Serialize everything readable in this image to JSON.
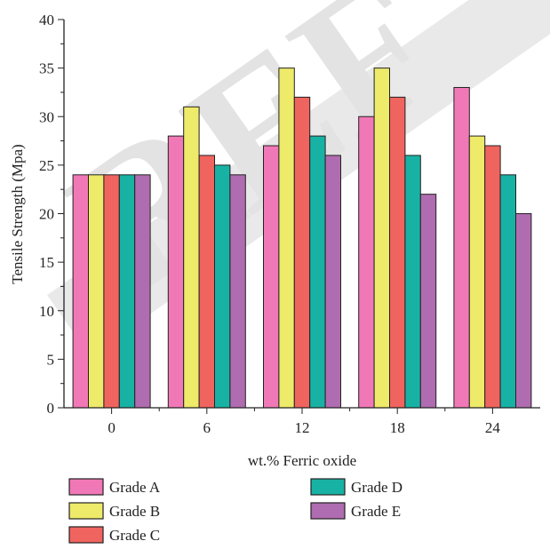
{
  "chart_data": {
    "type": "bar",
    "title": "",
    "xlabel": "wt.% Ferric oxide",
    "ylabel": "Tensile Strength (Mpa)",
    "ylim": [
      0,
      40
    ],
    "yticks": [
      0,
      5,
      10,
      15,
      20,
      25,
      30,
      35,
      40
    ],
    "grid": false,
    "legend_position": "bottom",
    "categories": [
      "0",
      "6",
      "12",
      "18",
      "24"
    ],
    "series": [
      {
        "name": "Grade A",
        "color": "#f178b6",
        "values": [
          24,
          28,
          27,
          30,
          33
        ]
      },
      {
        "name": "Grade B",
        "color": "#eeea6a",
        "values": [
          24,
          31,
          35,
          35,
          28
        ]
      },
      {
        "name": "Grade C",
        "color": "#f0645f",
        "values": [
          24,
          26,
          32,
          32,
          27
        ]
      },
      {
        "name": "Grade D",
        "color": "#18b2a5",
        "values": [
          24,
          25,
          28,
          26,
          24
        ]
      },
      {
        "name": "Grade E",
        "color": "#b06cb0",
        "values": [
          24,
          24,
          26,
          22,
          20
        ]
      }
    ],
    "watermark": "REF"
  }
}
